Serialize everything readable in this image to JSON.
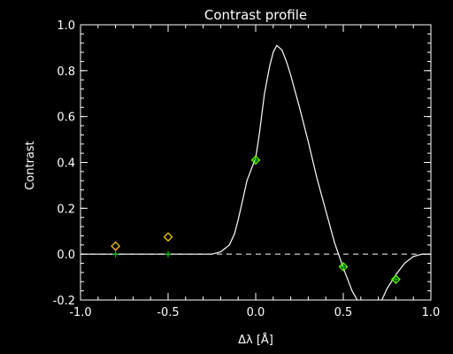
{
  "chart_data": {
    "type": "line",
    "title": "Contrast profile",
    "xlabel": "Δλ [Å]",
    "ylabel": "Contrast",
    "xlim": [
      -1.0,
      1.0
    ],
    "ylim": [
      -0.2,
      1.0
    ],
    "xticks": [
      -1.0,
      -0.5,
      0.0,
      0.5,
      1.0
    ],
    "xtick_labels": [
      "-1.0",
      "-0.5",
      "0.0",
      "0.5",
      "1.0"
    ],
    "yticks": [
      -0.2,
      0.0,
      0.2,
      0.4,
      0.6,
      0.8,
      1.0
    ],
    "ytick_labels": [
      "-0.2",
      "0.0",
      "0.2",
      "0.4",
      "0.6",
      "0.8",
      "1.0"
    ],
    "grid": false,
    "background": "#000000",
    "colors": {
      "axes": "#ffffff",
      "curve": "#ffffff",
      "observed_marker": "#ffd000",
      "fit_marker": "#00cc00",
      "highlight_marker": "#66ff00"
    },
    "reference_line": {
      "y": 0.0,
      "style": "dashed"
    },
    "series": [
      {
        "style": "solid-line",
        "x": [
          -1.0,
          -0.6,
          -0.25,
          -0.2,
          -0.15,
          -0.12,
          -0.1,
          -0.07,
          -0.05,
          -0.02,
          0.0,
          0.02,
          0.05,
          0.08,
          0.1,
          0.12,
          0.15,
          0.18,
          0.2,
          0.25,
          0.3,
          0.35,
          0.4,
          0.45,
          0.5,
          0.55,
          0.58
        ],
        "y": [
          0.0,
          0.0,
          0.0,
          0.01,
          0.04,
          0.09,
          0.15,
          0.25,
          0.32,
          0.38,
          0.42,
          0.52,
          0.7,
          0.82,
          0.88,
          0.91,
          0.89,
          0.83,
          0.78,
          0.64,
          0.49,
          0.33,
          0.19,
          0.05,
          -0.06,
          -0.16,
          -0.2
        ]
      },
      {
        "style": "solid-line",
        "x": [
          0.72,
          0.75,
          0.8,
          0.85,
          0.9,
          0.95,
          1.0
        ],
        "y": [
          -0.2,
          -0.15,
          -0.09,
          -0.04,
          -0.01,
          0.0,
          0.0
        ]
      },
      {
        "style": "diamond-markers",
        "x": [
          -0.8,
          -0.5,
          0.0,
          0.5,
          0.8
        ],
        "y": [
          0.035,
          0.075,
          0.41,
          -0.055,
          -0.11
        ]
      },
      {
        "style": "plus-markers",
        "x": [
          -0.8,
          -0.5,
          0.0,
          0.5,
          0.8
        ],
        "y": [
          0.0,
          0.0,
          0.41,
          -0.055,
          -0.11
        ]
      }
    ]
  }
}
